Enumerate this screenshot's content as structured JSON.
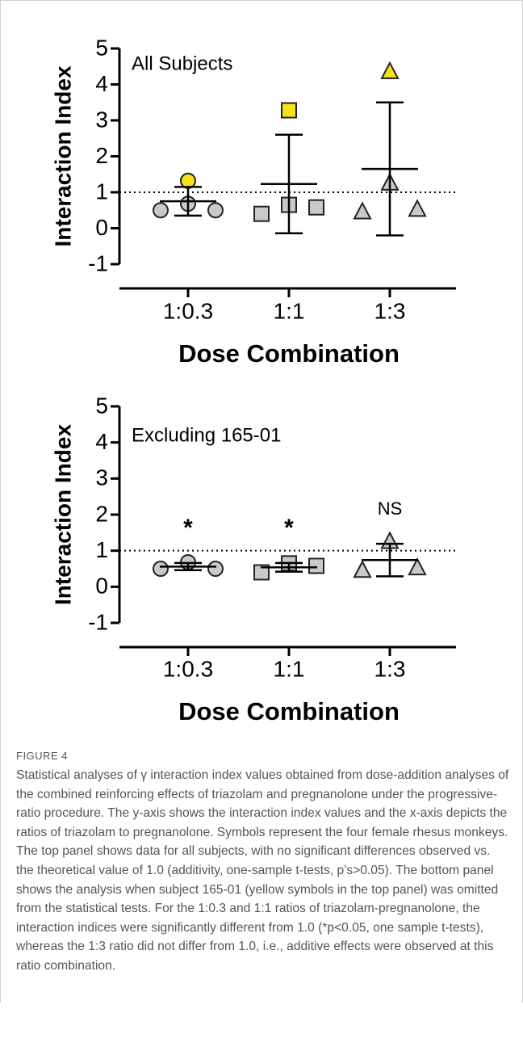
{
  "chart_data": [
    {
      "type": "scatter",
      "annotation": "All Subjects",
      "x_label": "Dose Combination",
      "y_label": "Interaction Index",
      "categories": [
        "1:0.3",
        "1:1",
        "1:3"
      ],
      "markers": [
        "circle",
        "square",
        "triangle"
      ],
      "points": [
        [
          1.32,
          0.5,
          0.68,
          0.5
        ],
        [
          3.28,
          0.4,
          0.65,
          0.58
        ],
        [
          4.35,
          0.45,
          1.25,
          0.52
        ]
      ],
      "point_colors": [
        "#f7e11c",
        "#c9c9c9",
        "#c9c9c9",
        "#c9c9c9"
      ],
      "means": [
        0.75,
        1.23,
        1.65
      ],
      "sd": [
        0.4,
        1.37,
        1.85
      ],
      "reference_line": 1,
      "ylim": [
        -1,
        5
      ],
      "yticks": [
        -1,
        0,
        1,
        2,
        3,
        4,
        5
      ]
    },
    {
      "type": "scatter",
      "annotation": "Excluding 165-01",
      "x_label": "Dose Combination",
      "y_label": "Interaction Index",
      "categories": [
        "1:0.3",
        "1:1",
        "1:3"
      ],
      "markers": [
        "circle",
        "square",
        "triangle"
      ],
      "points": [
        [
          0.5,
          0.68,
          0.5
        ],
        [
          0.4,
          0.65,
          0.58
        ],
        [
          0.45,
          1.25,
          0.52
        ]
      ],
      "point_colors": [
        "#c9c9c9",
        "#c9c9c9",
        "#c9c9c9"
      ],
      "means": [
        0.56,
        0.54,
        0.74
      ],
      "sd": [
        0.1,
        0.12,
        0.45
      ],
      "category_annotations": [
        "*",
        "*",
        "NS"
      ],
      "reference_line": 1,
      "ylim": [
        -1,
        5
      ],
      "yticks": [
        -1,
        0,
        1,
        2,
        3,
        4,
        5
      ]
    }
  ],
  "caption": {
    "label": "FIGURE 4",
    "text": "Statistical analyses of γ interaction index values obtained from dose-addition analyses of the combined reinforcing effects of triazolam and pregnanolone under the progressive-ratio procedure. The y-axis shows the interaction index values and the x-axis depicts the ratios of triazolam to pregnanolone. Symbols represent the four female rhesus monkeys. The top panel shows data for all subjects, with no significant differences observed vs. the theoretical value of 1.0 (additivity, one-sample t-tests, p’s>0.05). The bottom panel shows the analysis when subject 165-01 (yellow symbols in the top panel) was omitted from the statistical tests. For the 1:0.3 and 1:1 ratios of triazolam-pregnanolone, the interaction indices were significantly different from 1.0 (*p<0.05, one sample t-tests), whereas the 1:3 ratio did not differ from 1.0, i.e., additive effects were observed at this ratio combination."
  }
}
